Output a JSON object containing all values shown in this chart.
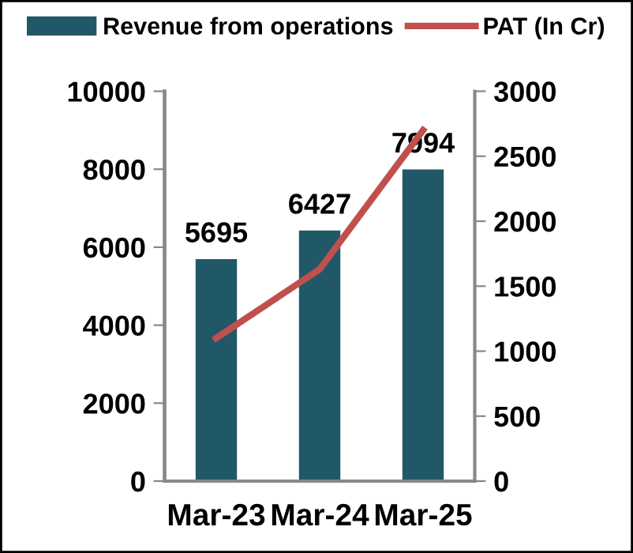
{
  "chart_data": {
    "type": "bar",
    "categories": [
      "Mar-23",
      "Mar-24",
      "Mar-25"
    ],
    "series": [
      {
        "name": "Revenue from operations",
        "color": "#215868",
        "values": [
          5695,
          6427,
          7994
        ],
        "value_labels": [
          "5695",
          "6427",
          "7994"
        ]
      },
      {
        "name": "PAT (In Cr)",
        "type": "line",
        "axis": "y2",
        "color": "#c0504d",
        "values": [
          1100,
          1630,
          2700
        ]
      }
    ],
    "ylim": [
      0,
      10000
    ],
    "yticks": [
      0,
      2000,
      4000,
      6000,
      8000,
      10000
    ],
    "y2lim": [
      0,
      3000
    ],
    "y2ticks": [
      0,
      500,
      1000,
      1500,
      2000,
      2500,
      3000
    ],
    "grid": false,
    "legend": "top",
    "marker": "none",
    "line_style": "solid"
  }
}
